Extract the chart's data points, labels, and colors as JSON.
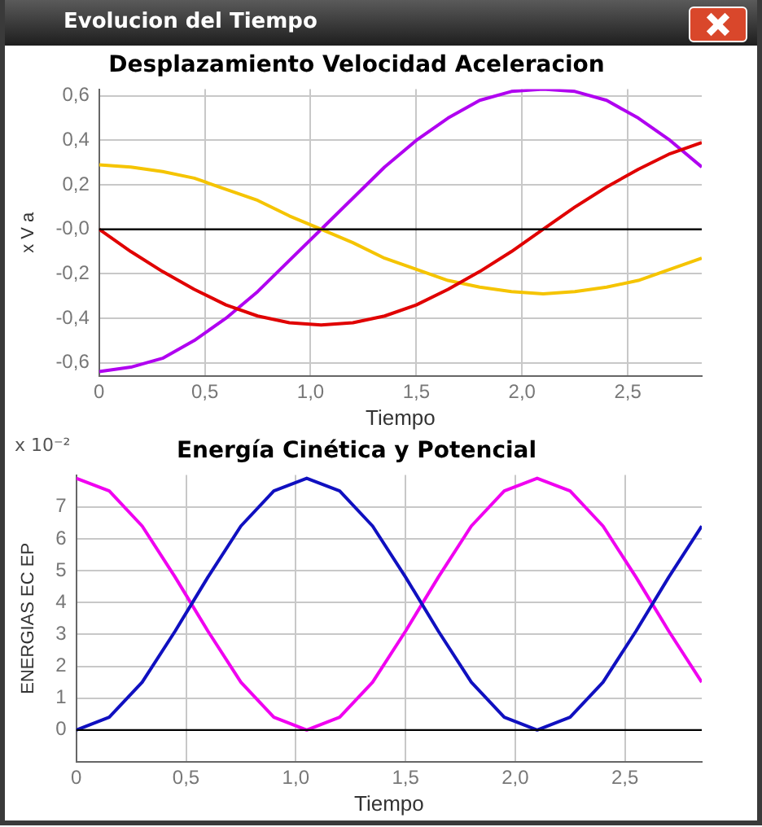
{
  "chart_data": [
    {
      "type": "line",
      "title": "Desplazamiento Velocidad Aceleracion",
      "xlabel": "Tiempo",
      "ylabel": "x V a",
      "annotations": [
        "Evolucion del Tiempo"
      ],
      "x": [
        0,
        0.15,
        0.3,
        0.45,
        0.6,
        0.75,
        0.9,
        1.05,
        1.2,
        1.35,
        1.5,
        1.65,
        1.8,
        1.95,
        2.1,
        2.25,
        2.4,
        2.55,
        2.7,
        2.85
      ],
      "series": [
        {
          "color": "#e00000",
          "values": [
            0,
            -0.1,
            -0.19,
            -0.27,
            -0.34,
            -0.39,
            -0.42,
            -0.43,
            -0.42,
            -0.39,
            -0.34,
            -0.27,
            -0.19,
            -0.1,
            0,
            0.1,
            0.19,
            0.27,
            0.34,
            0.39
          ]
        },
        {
          "color": "#f5c400",
          "values": [
            0.29,
            0.28,
            0.26,
            0.23,
            0.18,
            0.13,
            0.06,
            0,
            -0.06,
            -0.13,
            -0.18,
            -0.23,
            -0.26,
            -0.28,
            -0.29,
            -0.28,
            -0.26,
            -0.23,
            -0.18,
            -0.13
          ]
        },
        {
          "color": "#b000f0",
          "values": [
            -0.64,
            -0.62,
            -0.58,
            -0.5,
            -0.4,
            -0.28,
            -0.14,
            0,
            0.14,
            0.28,
            0.4,
            0.5,
            0.58,
            0.62,
            0.63,
            0.62,
            0.58,
            0.5,
            0.4,
            0.28
          ]
        }
      ],
      "xlim": [
        0,
        2.85
      ],
      "xticks": [
        0,
        {
          "value": 0.5,
          "label": "0,5"
        },
        {
          "value": 1,
          "label": "1,0"
        },
        {
          "value": 1.5,
          "label": "1,5"
        },
        {
          "value": 2,
          "label": "2,0"
        },
        {
          "value": 2.5,
          "label": "2,5"
        }
      ],
      "ylim": [
        -0.66,
        0.63
      ],
      "yticks": [
        {
          "value": -0.6,
          "label": "-0,6"
        },
        {
          "value": -0.4,
          "label": "-0,4"
        },
        {
          "value": -0.2,
          "label": "-0,2"
        },
        {
          "value": 0,
          "label": "-0,0"
        },
        {
          "value": 0.2,
          "label": "0,2"
        },
        {
          "value": 0.4,
          "label": "0,4"
        },
        {
          "value": 0.6,
          "label": "0,6"
        }
      ],
      "ref_lines": [
        {
          "axis": "y",
          "value": 0,
          "color": "#000000"
        }
      ],
      "grid": true,
      "legend": false,
      "marker": "none",
      "line_style": "solid"
    },
    {
      "type": "line",
      "title": "Energía Cinética y Potencial",
      "xlabel": "Tiempo",
      "ylabel": "ENERGIAS EC EP",
      "annotations": [
        "x 10⁻²"
      ],
      "x": [
        0,
        0.15,
        0.3,
        0.45,
        0.6,
        0.75,
        0.9,
        1.05,
        1.2,
        1.35,
        1.5,
        1.65,
        1.8,
        1.95,
        2.1,
        2.25,
        2.4,
        2.55,
        2.7,
        2.85
      ],
      "series": [
        {
          "color": "#1010c0",
          "values": [
            0,
            0.4,
            1.5,
            3.1,
            4.8,
            6.4,
            7.5,
            7.9,
            7.5,
            6.4,
            4.8,
            3.1,
            1.5,
            0.4,
            0,
            0.4,
            1.5,
            3.1,
            4.8,
            6.4
          ]
        },
        {
          "color": "#f000f0",
          "values": [
            7.9,
            7.5,
            6.4,
            4.8,
            3.1,
            1.5,
            0.4,
            0,
            0.4,
            1.5,
            3.1,
            4.8,
            6.4,
            7.5,
            7.9,
            7.5,
            6.4,
            4.8,
            3.1,
            1.5
          ]
        }
      ],
      "xlim": [
        0,
        2.85
      ],
      "xticks": [
        0,
        {
          "value": 0.5,
          "label": "0,5"
        },
        {
          "value": 1,
          "label": "1,0"
        },
        {
          "value": 1.5,
          "label": "1,5"
        },
        {
          "value": 2,
          "label": "2,0"
        },
        {
          "value": 2.5,
          "label": "2,5"
        }
      ],
      "ylim": [
        -1,
        8
      ],
      "yticks": [
        0,
        1,
        2,
        3,
        4,
        5,
        6,
        7
      ],
      "ref_lines": [
        {
          "axis": "y",
          "value": 0,
          "color": "#000000"
        }
      ],
      "grid": true,
      "legend": false,
      "marker": "none",
      "line_style": "solid"
    }
  ]
}
